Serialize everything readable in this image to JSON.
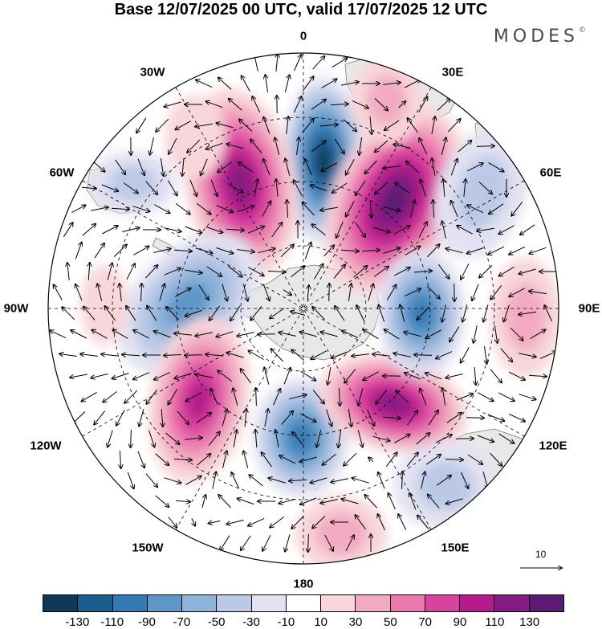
{
  "title": "Base 12/07/2025 00 UTC, valid 17/07/2025 12 UTC",
  "brand": "MODES",
  "brand_mark": "©",
  "longitude_labels": {
    "n0": "0",
    "e30": "30E",
    "e60": "60E",
    "e90": "90E",
    "e120": "120E",
    "e150": "150E",
    "s180": "180",
    "w150": "150W",
    "w120": "120W",
    "w90": "90W",
    "w60": "60W",
    "w30": "30W"
  },
  "vector_scale_label": "10",
  "colorbar": {
    "colors": [
      "#0d3a57",
      "#1b5e8e",
      "#3479b3",
      "#5d97c8",
      "#8fb4db",
      "#bcc9e6",
      "#e2e2f2",
      "#ffffff",
      "#f8d6da",
      "#f2aac2",
      "#ea78ae",
      "#d9439e",
      "#b61a8c",
      "#861b83",
      "#5c1b73"
    ],
    "ticks": [
      "-130",
      "-110",
      "-90",
      "-70",
      "-50",
      "-30",
      "-10",
      "10",
      "30",
      "50",
      "70",
      "90",
      "110",
      "130"
    ]
  }
}
